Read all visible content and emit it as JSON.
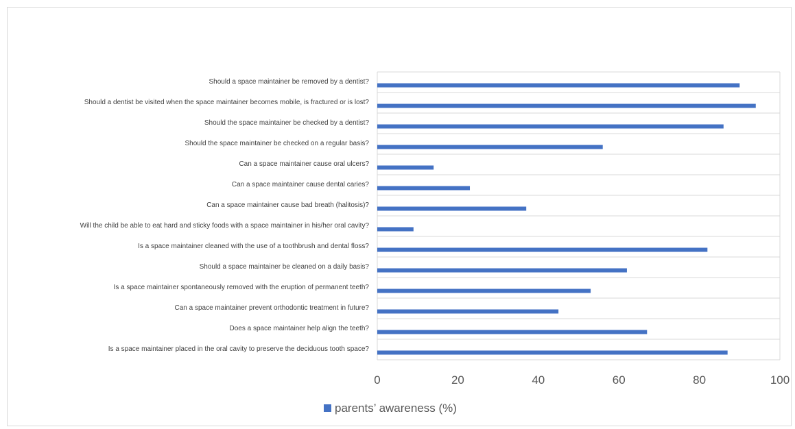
{
  "chart_data": {
    "type": "bar",
    "orientation": "horizontal",
    "categories": [
      "Should a space maintainer be removed by a dentist?",
      "Should a dentist be visited when the space maintainer becomes mobile, is fractured or is lost?",
      "Should the space maintainer be checked by a dentist?",
      "Should the space maintainer be checked on a regular basis?",
      "Can a space maintainer cause oral ulcers?",
      "Can a space maintainer cause dental caries?",
      "Can a space maintainer cause bad breath (halitosis)?",
      "Will the child be able to eat hard and sticky foods with a space maintainer in his/her oral cavity?",
      "Is a space maintainer cleaned with the use of a toothbrush and dental floss?",
      "Should a space maintainer be cleaned on a daily basis?",
      "Is a space maintainer spontaneously removed with the eruption of permanent teeth?",
      "Can a space maintainer prevent orthodontic treatment in future?",
      "Does a space maintainer help align the teeth?",
      "Is a space maintainer placed in the oral cavity to preserve the deciduous tooth space?"
    ],
    "series": [
      {
        "name": "parents’ awareness (%)",
        "values": [
          90,
          94,
          86,
          56,
          14,
          23,
          37,
          9,
          82,
          62,
          53,
          45,
          67,
          87
        ]
      }
    ],
    "xlim": [
      0,
      100
    ],
    "x_ticks": [
      "0",
      "20",
      "40",
      "60",
      "80",
      "100"
    ],
    "grid": true,
    "legend": "bottom",
    "colors": {
      "bar": "#4472c4",
      "grid": "#d9d9d9"
    }
  }
}
